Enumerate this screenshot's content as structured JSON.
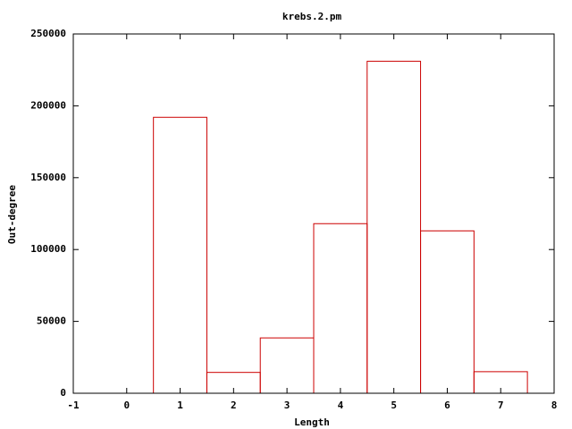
{
  "chart_data": {
    "type": "histogram",
    "title": "krebs.2.pm",
    "x_label": "Length",
    "y_label": "Out-degree",
    "bins": [
      0.5,
      1.5,
      2.5,
      3.5,
      4.5,
      5.5,
      6.5,
      7.5
    ],
    "values": [
      192000,
      14500,
      38500,
      118000,
      231000,
      113000,
      15000
    ],
    "color": "#cc0000",
    "xlim": [
      -1,
      8
    ],
    "xticks": [
      -1,
      0,
      1,
      2,
      3,
      4,
      5,
      6,
      7,
      8
    ],
    "ylim": [
      0,
      250000
    ],
    "yticks": [
      0,
      50000,
      100000,
      150000,
      200000,
      250000
    ]
  }
}
